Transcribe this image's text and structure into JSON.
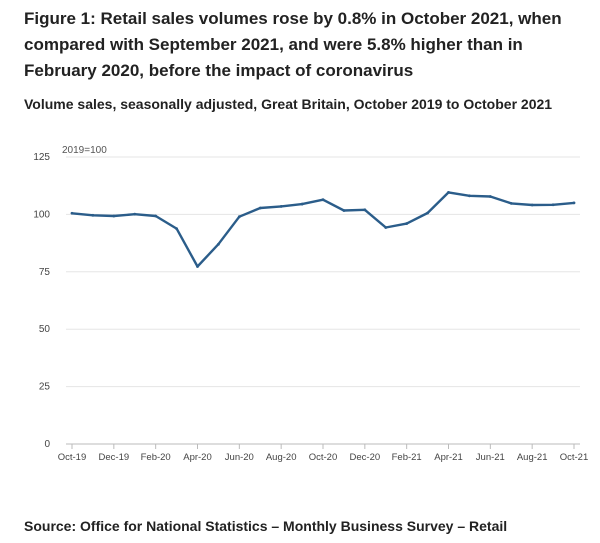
{
  "title": "Figure 1: Retail sales volumes rose by 0.8% in October 2021, when compared with September 2021, and were 5.8% higher than in February 2020, before the impact of coronavirus",
  "subtitle": "Volume sales, seasonally adjusted, Great Britain, October 2019 to October 2021",
  "source": "Source: Office for National Statistics – Monthly Business Survey – Retail",
  "colors": {
    "series": "#2b5d8a",
    "grid": "#e5e5e5",
    "axis": "#666666",
    "text": "#222222"
  },
  "chart_data": {
    "type": "line",
    "title": "",
    "xlabel": "",
    "ylabel": "",
    "y_unit_label": "2019=100",
    "ylim": [
      0,
      125
    ],
    "yticks": [
      0,
      25,
      50,
      75,
      100,
      125
    ],
    "grid": true,
    "legend": "none",
    "x": [
      "Oct-19",
      "Nov-19",
      "Dec-19",
      "Jan-20",
      "Feb-20",
      "Mar-20",
      "Apr-20",
      "May-20",
      "Jun-20",
      "Jul-20",
      "Aug-20",
      "Sep-20",
      "Oct-20",
      "Nov-20",
      "Dec-20",
      "Jan-21",
      "Feb-21",
      "Mar-21",
      "Apr-21",
      "May-21",
      "Jun-21",
      "Jul-21",
      "Aug-21",
      "Sep-21",
      "Oct-21"
    ],
    "xtick_labels": [
      "Oct-19",
      "Dec-19",
      "Feb-20",
      "Apr-20",
      "Jun-20",
      "Aug-20",
      "Oct-20",
      "Dec-20",
      "Feb-21",
      "Apr-21",
      "Jun-21",
      "Aug-21",
      "Oct-21"
    ],
    "series": [
      {
        "values": [
          100.5,
          99.6,
          99.3,
          100.1,
          99.3,
          93.8,
          77.3,
          87.0,
          99.0,
          102.8,
          103.5,
          104.5,
          106.4,
          101.7,
          102.0,
          94.3,
          96.0,
          100.6,
          109.6,
          108.1,
          107.8,
          104.8,
          104.1,
          104.2,
          105.0
        ]
      }
    ]
  }
}
